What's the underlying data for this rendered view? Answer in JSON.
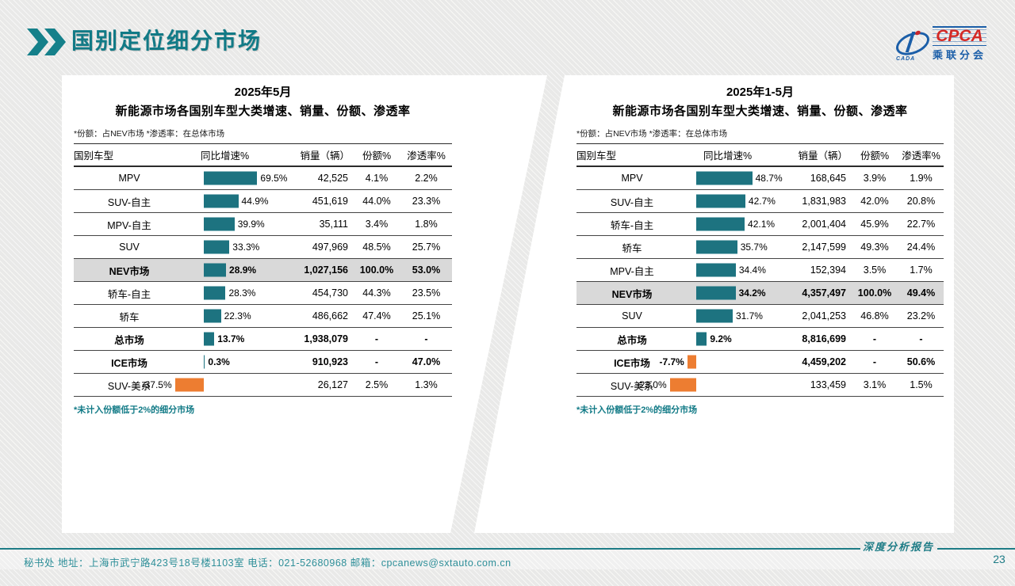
{
  "header": {
    "title": "国别定位细分市场"
  },
  "logo": {
    "cpca": "CPCA",
    "cada": "CADA",
    "cn": "乘联分会"
  },
  "colors": {
    "teal_bar": "#1D7380",
    "orange_bar": "#ED7D31",
    "title_teal": "#117A86",
    "highlight_row_bg": "#D9D9D9",
    "footer_teal": "#1E7C86"
  },
  "footer": {
    "left": "秘书处   地址：上海市武宁路423号18号楼1103室  电话：021-52680968   邮箱：cpcanews@sxtauto.com.cn",
    "report": "深度分析报告",
    "page": "23"
  },
  "panels": [
    {
      "title_line1": "2025年5月",
      "title_line2": "新能源市场各国别车型大类增速、销量、份额、渗透率",
      "note": "*份额：占NEV市场   *渗透率：在总体市场",
      "footnote": "*未计入份额低于2%的细分市场",
      "columns": [
        "国别车型",
        "同比增速%",
        "销量（辆）",
        "份额%",
        "渗透率%"
      ],
      "rows": [
        {
          "label": "MPV",
          "growth": 69.5,
          "growth_label": "69.5%",
          "sales": "42,525",
          "share": "4.1%",
          "pen": "2.2%",
          "bold": false,
          "highlight": false
        },
        {
          "label": "SUV-自主",
          "growth": 44.9,
          "growth_label": "44.9%",
          "sales": "451,619",
          "share": "44.0%",
          "pen": "23.3%",
          "bold": false,
          "highlight": false
        },
        {
          "label": "MPV-自主",
          "growth": 39.9,
          "growth_label": "39.9%",
          "sales": "35,111",
          "share": "3.4%",
          "pen": "1.8%",
          "bold": false,
          "highlight": false
        },
        {
          "label": "SUV",
          "growth": 33.3,
          "growth_label": "33.3%",
          "sales": "497,969",
          "share": "48.5%",
          "pen": "25.7%",
          "bold": false,
          "highlight": false
        },
        {
          "label": "NEV市场",
          "growth": 28.9,
          "growth_label": "28.9%",
          "sales": "1,027,156",
          "share": "100.0%",
          "pen": "53.0%",
          "bold": true,
          "highlight": true
        },
        {
          "label": "轿车-自主",
          "growth": 28.3,
          "growth_label": "28.3%",
          "sales": "454,730",
          "share": "44.3%",
          "pen": "23.5%",
          "bold": false,
          "highlight": false
        },
        {
          "label": "轿车",
          "growth": 22.3,
          "growth_label": "22.3%",
          "sales": "486,662",
          "share": "47.4%",
          "pen": "25.1%",
          "bold": false,
          "highlight": false
        },
        {
          "label": "总市场",
          "growth": 13.7,
          "growth_label": "13.7%",
          "sales": "1,938,079",
          "share": "-",
          "pen": "-",
          "bold": true,
          "highlight": false
        },
        {
          "label": "ICE市场",
          "growth": 0.3,
          "growth_label": "0.3%",
          "sales": "910,923",
          "share": "-",
          "pen": "47.0%",
          "bold": true,
          "highlight": false
        },
        {
          "label": "SUV-美系",
          "growth": -37.5,
          "growth_label": "-37.5%",
          "sales": "26,127",
          "share": "2.5%",
          "pen": "1.3%",
          "bold": false,
          "highlight": false
        }
      ]
    },
    {
      "title_line1": "2025年1-5月",
      "title_line2": "新能源市场各国别车型大类增速、销量、份额、渗透率",
      "note": "*份额：占NEV市场   *渗透率：在总体市场",
      "footnote": "*未计入份额低于2%的细分市场",
      "columns": [
        "国别车型",
        "同比增速%",
        "销量（辆）",
        "份额%",
        "渗透率%"
      ],
      "rows": [
        {
          "label": "MPV",
          "growth": 48.7,
          "growth_label": "48.7%",
          "sales": "168,645",
          "share": "3.9%",
          "pen": "1.9%",
          "bold": false,
          "highlight": false
        },
        {
          "label": "SUV-自主",
          "growth": 42.7,
          "growth_label": "42.7%",
          "sales": "1,831,983",
          "share": "42.0%",
          "pen": "20.8%",
          "bold": false,
          "highlight": false
        },
        {
          "label": "轿车-自主",
          "growth": 42.1,
          "growth_label": "42.1%",
          "sales": "2,001,404",
          "share": "45.9%",
          "pen": "22.7%",
          "bold": false,
          "highlight": false
        },
        {
          "label": "轿车",
          "growth": 35.7,
          "growth_label": "35.7%",
          "sales": "2,147,599",
          "share": "49.3%",
          "pen": "24.4%",
          "bold": false,
          "highlight": false
        },
        {
          "label": "MPV-自主",
          "growth": 34.4,
          "growth_label": "34.4%",
          "sales": "152,394",
          "share": "3.5%",
          "pen": "1.7%",
          "bold": false,
          "highlight": false
        },
        {
          "label": "NEV市场",
          "growth": 34.2,
          "growth_label": "34.2%",
          "sales": "4,357,497",
          "share": "100.0%",
          "pen": "49.4%",
          "bold": true,
          "highlight": true
        },
        {
          "label": "SUV",
          "growth": 31.7,
          "growth_label": "31.7%",
          "sales": "2,041,253",
          "share": "46.8%",
          "pen": "23.2%",
          "bold": false,
          "highlight": false
        },
        {
          "label": "总市场",
          "growth": 9.2,
          "growth_label": "9.2%",
          "sales": "8,816,699",
          "share": "-",
          "pen": "-",
          "bold": true,
          "highlight": false
        },
        {
          "label": "ICE市场",
          "growth": -7.7,
          "growth_label": "-7.7%",
          "sales": "4,459,202",
          "share": "-",
          "pen": "50.6%",
          "bold": true,
          "highlight": false
        },
        {
          "label": "SUV-美系",
          "growth": -23.0,
          "growth_label": "-23.0%",
          "sales": "133,459",
          "share": "3.1%",
          "pen": "1.5%",
          "bold": false,
          "highlight": false
        }
      ]
    }
  ],
  "chart_data": [
    {
      "type": "bar",
      "orientation": "horizontal",
      "title": "2025年5月 新能源市场各国别车型大类增速、销量、份额、渗透率",
      "note": "*份额：占NEV市场 *渗透率：在总体市场；*未计入份额低于2%的细分市场",
      "categories": [
        "MPV",
        "SUV-自主",
        "MPV-自主",
        "SUV",
        "NEV市场",
        "轿车-自主",
        "轿车",
        "总市场",
        "ICE市场",
        "SUV-美系"
      ],
      "series": [
        {
          "name": "同比增速%",
          "values": [
            69.5,
            44.9,
            39.9,
            33.3,
            28.9,
            28.3,
            22.3,
            13.7,
            0.3,
            -37.5
          ]
        },
        {
          "name": "销量（辆）",
          "values": [
            42525,
            451619,
            35111,
            497969,
            1027156,
            454730,
            486662,
            1938079,
            910923,
            26127
          ]
        },
        {
          "name": "份额%",
          "values": [
            4.1,
            44.0,
            3.4,
            48.5,
            100.0,
            44.3,
            47.4,
            null,
            null,
            2.5
          ]
        },
        {
          "name": "渗透率%",
          "values": [
            2.2,
            23.3,
            1.8,
            25.7,
            53.0,
            23.5,
            25.1,
            null,
            47.0,
            1.3
          ]
        }
      ],
      "bar_colors": {
        "positive": "#1D7380",
        "negative": "#ED7D31"
      },
      "xlim": [
        -40,
        75
      ],
      "grid": false,
      "legend": "none"
    },
    {
      "type": "bar",
      "orientation": "horizontal",
      "title": "2025年1-5月 新能源市场各国别车型大类增速、销量、份额、渗透率",
      "note": "*份额：占NEV市场 *渗透率：在总体市场；*未计入份额低于2%的细分市场",
      "categories": [
        "MPV",
        "SUV-自主",
        "轿车-自主",
        "轿车",
        "MPV-自主",
        "NEV市场",
        "SUV",
        "总市场",
        "ICE市场",
        "SUV-美系"
      ],
      "series": [
        {
          "name": "同比增速%",
          "values": [
            48.7,
            42.7,
            42.1,
            35.7,
            34.4,
            34.2,
            31.7,
            9.2,
            -7.7,
            -23.0
          ]
        },
        {
          "name": "销量（辆）",
          "values": [
            168645,
            1831983,
            2001404,
            2147599,
            152394,
            4357497,
            2041253,
            8816699,
            4459202,
            133459
          ]
        },
        {
          "name": "份额%",
          "values": [
            3.9,
            42.0,
            45.9,
            49.3,
            3.5,
            100.0,
            46.8,
            null,
            null,
            3.1
          ]
        },
        {
          "name": "渗透率%",
          "values": [
            1.9,
            20.8,
            22.7,
            24.4,
            1.7,
            49.4,
            23.2,
            null,
            null,
            1.5
          ]
        }
      ],
      "bar_colors": {
        "positive": "#1D7380",
        "negative": "#ED7D31"
      },
      "xlim": [
        -25,
        55
      ],
      "grid": false,
      "legend": "none"
    }
  ]
}
